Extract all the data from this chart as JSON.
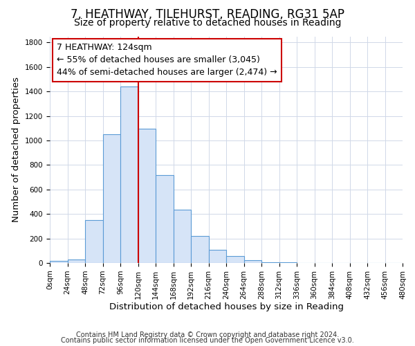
{
  "title": "7, HEATHWAY, TILEHURST, READING, RG31 5AP",
  "subtitle": "Size of property relative to detached houses in Reading",
  "xlabel": "Distribution of detached houses by size in Reading",
  "ylabel": "Number of detached properties",
  "bar_data": [
    {
      "bin_start": 0,
      "bin_end": 24,
      "count": 15
    },
    {
      "bin_start": 24,
      "bin_end": 48,
      "count": 30
    },
    {
      "bin_start": 48,
      "bin_end": 72,
      "count": 350
    },
    {
      "bin_start": 72,
      "bin_end": 96,
      "count": 1050
    },
    {
      "bin_start": 96,
      "bin_end": 120,
      "count": 1440
    },
    {
      "bin_start": 120,
      "bin_end": 144,
      "count": 1095
    },
    {
      "bin_start": 144,
      "bin_end": 168,
      "count": 720
    },
    {
      "bin_start": 168,
      "bin_end": 192,
      "count": 435
    },
    {
      "bin_start": 192,
      "bin_end": 216,
      "count": 220
    },
    {
      "bin_start": 216,
      "bin_end": 240,
      "count": 105
    },
    {
      "bin_start": 240,
      "bin_end": 264,
      "count": 55
    },
    {
      "bin_start": 264,
      "bin_end": 288,
      "count": 20
    },
    {
      "bin_start": 288,
      "bin_end": 312,
      "count": 8
    },
    {
      "bin_start": 312,
      "bin_end": 336,
      "count": 3
    },
    {
      "bin_start": 336,
      "bin_end": 360,
      "count": 2
    },
    {
      "bin_start": 360,
      "bin_end": 384,
      "count": 1
    },
    {
      "bin_start": 384,
      "bin_end": 408,
      "count": 1
    },
    {
      "bin_start": 408,
      "bin_end": 432,
      "count": 0
    },
    {
      "bin_start": 432,
      "bin_end": 456,
      "count": 0
    },
    {
      "bin_start": 456,
      "bin_end": 480,
      "count": 0
    }
  ],
  "bar_fill": "#d6e4f7",
  "bar_edge": "#5b9bd5",
  "vline_x": 120,
  "vline_color": "#cc0000",
  "annotation_line1": "7 HEATHWAY: 124sqm",
  "annotation_line2": "← 55% of detached houses are smaller (3,045)",
  "annotation_line3": "44% of semi-detached houses are larger (2,474) →",
  "ylim": [
    0,
    1850
  ],
  "xlim": [
    0,
    480
  ],
  "footer_line1": "Contains HM Land Registry data © Crown copyright and database right 2024.",
  "footer_line2": "Contains public sector information licensed under the Open Government Licence v3.0.",
  "bg_color": "#ffffff",
  "grid_color": "#d0d8e8",
  "title_fontsize": 12,
  "subtitle_fontsize": 10,
  "axis_label_fontsize": 9.5,
  "tick_fontsize": 7.5,
  "annotation_fontsize": 9,
  "footer_fontsize": 7
}
